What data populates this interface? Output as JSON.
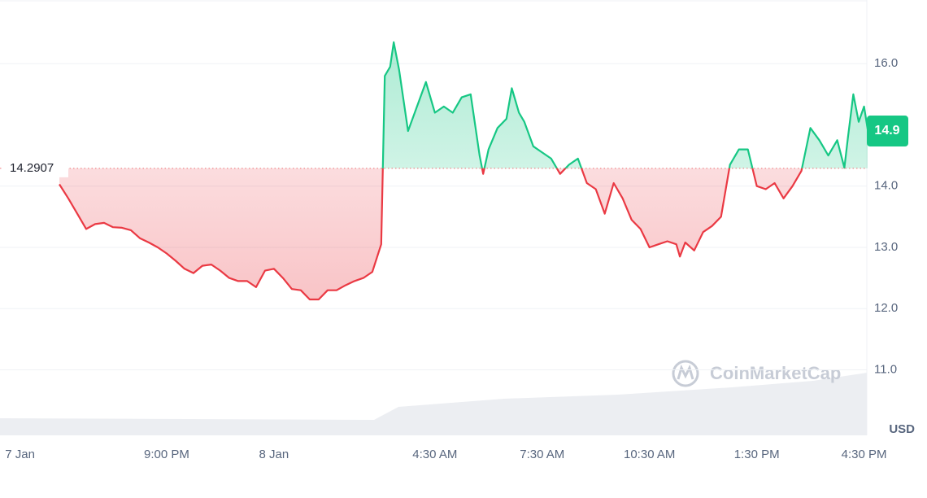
{
  "chart_data": {
    "type": "line",
    "x": [
      0,
      0.25,
      0.5,
      0.75,
      1,
      1.25,
      1.5,
      1.75,
      2,
      2.25,
      2.5,
      2.75,
      3,
      3.25,
      3.5,
      3.75,
      4,
      4.25,
      4.5,
      4.75,
      5,
      5.25,
      5.5,
      5.75,
      6,
      6.25,
      6.5,
      6.75,
      7,
      7.25,
      7.5,
      7.75,
      8,
      8.25,
      8.5,
      8.75,
      9,
      9.1,
      9.25,
      9.35,
      9.5,
      9.75,
      10,
      10.25,
      10.5,
      10.75,
      11,
      11.25,
      11.5,
      11.75,
      11.85,
      12,
      12.25,
      12.5,
      12.65,
      12.85,
      13,
      13.25,
      13.5,
      13.75,
      14,
      14.25,
      14.5,
      14.75,
      15,
      15.25,
      15.5,
      15.75,
      16,
      16.25,
      16.5,
      16.75,
      17,
      17.25,
      17.35,
      17.5,
      17.75,
      18,
      18.25,
      18.5,
      18.75,
      19,
      19.25,
      19.5,
      19.75,
      20,
      20.25,
      20.5,
      20.75,
      21,
      21.25,
      21.5,
      21.75,
      21.95,
      22.05,
      22.2,
      22.35,
      22.5,
      22.6
    ],
    "series": [
      {
        "up_color": "#16c784",
        "down_color": "#ea3943",
        "values": [
          14.03,
          13.8,
          13.55,
          13.3,
          13.38,
          13.4,
          13.33,
          13.32,
          13.28,
          13.15,
          13.08,
          13.0,
          12.9,
          12.78,
          12.65,
          12.58,
          12.7,
          12.72,
          12.62,
          12.5,
          12.45,
          12.45,
          12.35,
          12.62,
          12.65,
          12.5,
          12.32,
          12.3,
          12.15,
          12.15,
          12.3,
          12.3,
          12.38,
          12.45,
          12.5,
          12.6,
          13.05,
          15.8,
          15.95,
          16.35,
          15.9,
          14.9,
          15.3,
          15.7,
          15.2,
          15.3,
          15.2,
          15.45,
          15.5,
          14.5,
          14.2,
          14.6,
          14.95,
          15.1,
          15.6,
          15.2,
          15.05,
          14.65,
          14.55,
          14.45,
          14.2,
          14.35,
          14.45,
          14.05,
          13.95,
          13.55,
          14.05,
          13.8,
          13.45,
          13.3,
          13.0,
          13.05,
          13.1,
          13.05,
          12.85,
          13.08,
          12.95,
          13.25,
          13.35,
          13.5,
          14.35,
          14.6,
          14.6,
          14.0,
          13.95,
          14.05,
          13.8,
          14.0,
          14.25,
          14.95,
          14.75,
          14.5,
          14.75,
          14.3,
          14.8,
          15.5,
          15.05,
          15.3,
          14.93
        ]
      }
    ],
    "baseline": 14.2907,
    "current_price": 14.9,
    "xlim": [
      -1.66,
      22.6
    ],
    "xticks": [
      {
        "value": -1.1,
        "label": "7 Jan"
      },
      {
        "value": 3,
        "label": "9:00 PM"
      },
      {
        "value": 6,
        "label": "8 Jan"
      },
      {
        "value": 10.5,
        "label": "4:30 AM"
      },
      {
        "value": 13.5,
        "label": "7:30 AM"
      },
      {
        "value": 16.5,
        "label": "10:30 AM"
      },
      {
        "value": 19.5,
        "label": "1:30 PM"
      },
      {
        "value": 22.5,
        "label": "4:30 PM"
      }
    ],
    "ylim": [
      9.93,
      17.04
    ],
    "yticks": [
      {
        "value": 11,
        "label": "11.0"
      },
      {
        "value": 12,
        "label": "12.0"
      },
      {
        "value": 13,
        "label": "13.0"
      },
      {
        "value": 14,
        "label": "14.0"
      },
      {
        "value": 16,
        "label": "16.0"
      }
    ],
    "unit": "USD",
    "watermark": "CoinMarketCap",
    "grid": true
  }
}
